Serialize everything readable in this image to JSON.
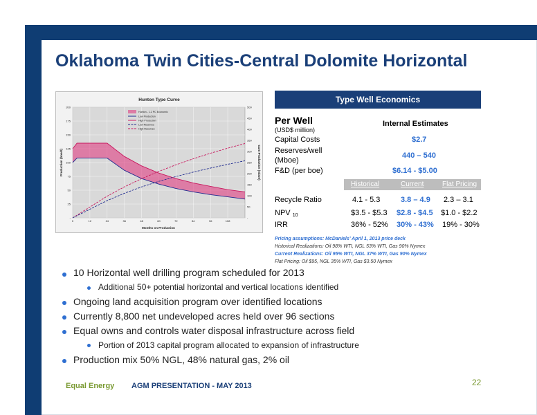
{
  "slide": {
    "title": "Oklahoma Twin Cities-Central Dolomite Horizontal",
    "footer": {
      "company": "Equal Energy",
      "presentation": "AGM PRESENTATION - MAY 2013",
      "page": "22"
    }
  },
  "colors": {
    "navy": "#0f3d73",
    "accent_blue": "#2f6fd1",
    "green": "#7a9a32",
    "pink_band": "#e0307a"
  },
  "chart_data": {
    "type": "line",
    "title": "Hunton Type Curve",
    "xlabel": "Months on Production",
    "ylabel": "Production (boe/d)",
    "y2label": "Cum Production (mboe)",
    "x_ticks": [
      0,
      12,
      24,
      36,
      48,
      60,
      72,
      84,
      96,
      108
    ],
    "y_ticks": [
      0,
      25,
      50,
      75,
      100,
      125,
      150,
      175,
      200
    ],
    "y2_ticks": [
      0,
      50,
      100,
      150,
      200,
      250,
      300,
      350,
      400,
      450,
      500
    ],
    "xlim": [
      0,
      120
    ],
    "ylim": [
      0,
      200
    ],
    "y2lim": [
      0,
      500
    ],
    "legend": [
      "Hunton - 1.2 PC Economic",
      "Low Production",
      "High Production",
      "Low Reserves",
      "High Reserves"
    ],
    "series": [
      {
        "name": "High Production",
        "x": [
          0,
          3,
          24,
          36,
          48,
          60,
          72,
          84,
          96,
          108,
          120
        ],
        "values": [
          125,
          135,
          135,
          111,
          94,
          81,
          71,
          63,
          57,
          51,
          47
        ]
      },
      {
        "name": "Low Production",
        "x": [
          0,
          3,
          24,
          36,
          48,
          60,
          72,
          84,
          96,
          108,
          120
        ],
        "values": [
          100,
          108,
          108,
          86,
          71,
          61,
          53,
          47,
          42,
          38,
          34
        ]
      },
      {
        "name": "High Reserves",
        "x": [
          0,
          12,
          24,
          36,
          48,
          60,
          72,
          84,
          96,
          108,
          120
        ],
        "values2": [
          0,
          49,
          98,
          140,
          177,
          210,
          240,
          267,
          292,
          315,
          336
        ]
      },
      {
        "name": "Low Reserves",
        "x": [
          0,
          12,
          24,
          36,
          48,
          60,
          72,
          84,
          96,
          108,
          120
        ],
        "values2": [
          0,
          39,
          78,
          111,
          140,
          165,
          187,
          207,
          225,
          242,
          258
        ]
      }
    ]
  },
  "economics": {
    "header": "Type Well Economics",
    "per_well": "Per Well",
    "units": "(USD$ million)",
    "col_internal": "Internal Estimates",
    "capital_costs_label": "Capital Costs",
    "capital_costs": "$2.7",
    "reserves_label_1": "Reserves/well",
    "reserves_label_2": "(Mboe)",
    "reserves": "440 – 540",
    "fd_label": "F&D (per boe)",
    "fd": "$6.14 - $5.00",
    "cols": [
      "Historical",
      "Current",
      "Flat Pricing"
    ],
    "recycle_label": "Recycle Ratio",
    "recycle": [
      "4.1 - 5.3",
      "3.8 – 4.9",
      "2.3 – 3.1"
    ],
    "npv_label": "NPV",
    "npv_sub": "10",
    "npv": [
      "$3.5 - $5.3",
      "$2.8 - $4.5",
      "$1.0 - $2.2"
    ],
    "irr_label": "IRR",
    "irr": [
      "36% - 52%",
      "30% - 43%",
      "19% - 30%"
    ]
  },
  "pricing": {
    "line1": "Pricing assumptions:  McDaniels’  April 1, 2013 price deck",
    "line2": "Historical Realizations:  Oil 98% WTI, NGL 53% WTI, Gas 90% Nymex",
    "line3": "Current Realizations:  Oil 95% WTI, NGL 37% WTI, Gas 90% Nymex",
    "line4": "Flat Pricing:  Oil $95, NGL 35% WTI, Gas $3.50 Nymex"
  },
  "bullets": [
    {
      "level": 1,
      "text": "10 Horizontal well drilling program scheduled for 2013"
    },
    {
      "level": 2,
      "text": "Additional 50+ potential horizontal and vertical locations identified"
    },
    {
      "level": 1,
      "text": "Ongoing land acquisition program over identified locations"
    },
    {
      "level": 1,
      "text": "Currently 8,800 net undeveloped acres held over 96 sections"
    },
    {
      "level": 1,
      "text": "Equal owns and controls water disposal infrastructure across field"
    },
    {
      "level": 2,
      "text": "Portion of 2013 capital program allocated to expansion of infrastructure"
    },
    {
      "level": 1,
      "text": "Production mix 50% NGL, 48% natural gas, 2% oil"
    }
  ]
}
